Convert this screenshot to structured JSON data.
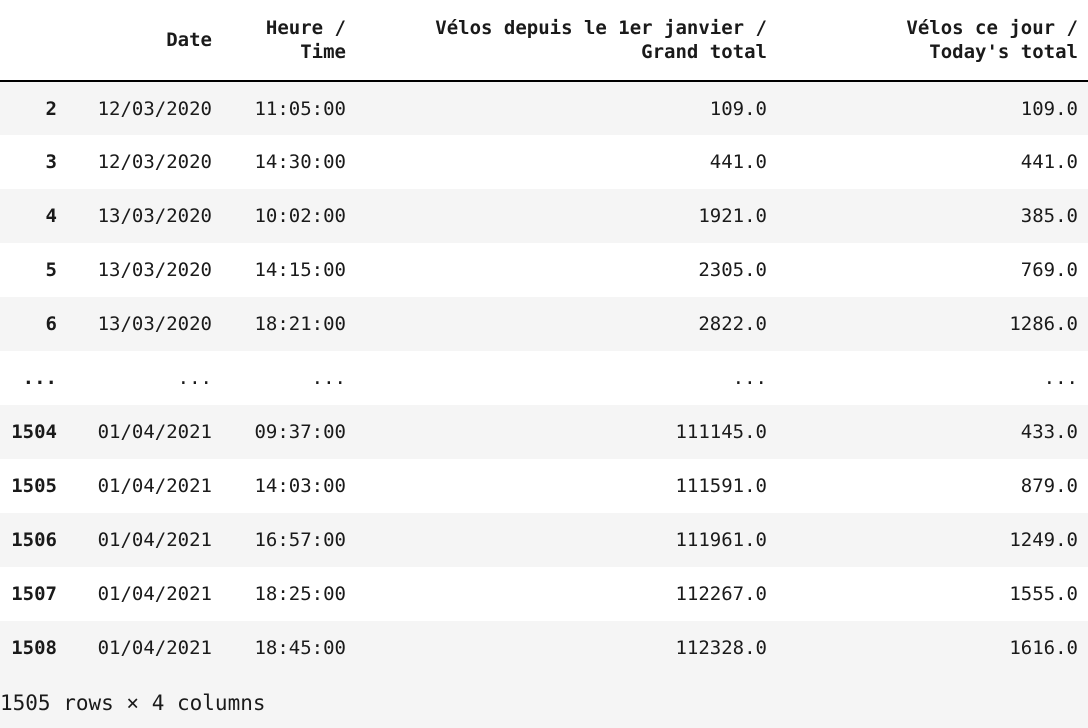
{
  "table": {
    "columns": {
      "index": "",
      "date": "Date",
      "time_line1": "Heure /",
      "time_line2": "Time",
      "grand_line1": "Vélos depuis le 1er janvier /",
      "grand_line2": "Grand total",
      "today_line1": "Vélos ce jour /",
      "today_line2": "Today's total"
    },
    "rows": [
      {
        "index": "2",
        "date": "12/03/2020",
        "time": "11:05:00",
        "grand": "109.0",
        "today": "109.0"
      },
      {
        "index": "3",
        "date": "12/03/2020",
        "time": "14:30:00",
        "grand": "441.0",
        "today": "441.0"
      },
      {
        "index": "4",
        "date": "13/03/2020",
        "time": "10:02:00",
        "grand": "1921.0",
        "today": "385.0"
      },
      {
        "index": "5",
        "date": "13/03/2020",
        "time": "14:15:00",
        "grand": "2305.0",
        "today": "769.0"
      },
      {
        "index": "6",
        "date": "13/03/2020",
        "time": "18:21:00",
        "grand": "2822.0",
        "today": "1286.0"
      },
      {
        "index": "...",
        "date": "...",
        "time": "...",
        "grand": "...",
        "today": "..."
      },
      {
        "index": "1504",
        "date": "01/04/2021",
        "time": "09:37:00",
        "grand": "111145.0",
        "today": "433.0"
      },
      {
        "index": "1505",
        "date": "01/04/2021",
        "time": "14:03:00",
        "grand": "111591.0",
        "today": "879.0"
      },
      {
        "index": "1506",
        "date": "01/04/2021",
        "time": "16:57:00",
        "grand": "111961.0",
        "today": "1249.0"
      },
      {
        "index": "1507",
        "date": "01/04/2021",
        "time": "18:25:00",
        "grand": "112267.0",
        "today": "1555.0"
      },
      {
        "index": "1508",
        "date": "01/04/2021",
        "time": "18:45:00",
        "grand": "112328.0",
        "today": "1616.0"
      }
    ]
  },
  "shape_text": "1505 rows × 4 columns",
  "colors": {
    "row_shade": "#f5f5f5",
    "header_rule": "#000000",
    "text": "#1a1a1a"
  }
}
